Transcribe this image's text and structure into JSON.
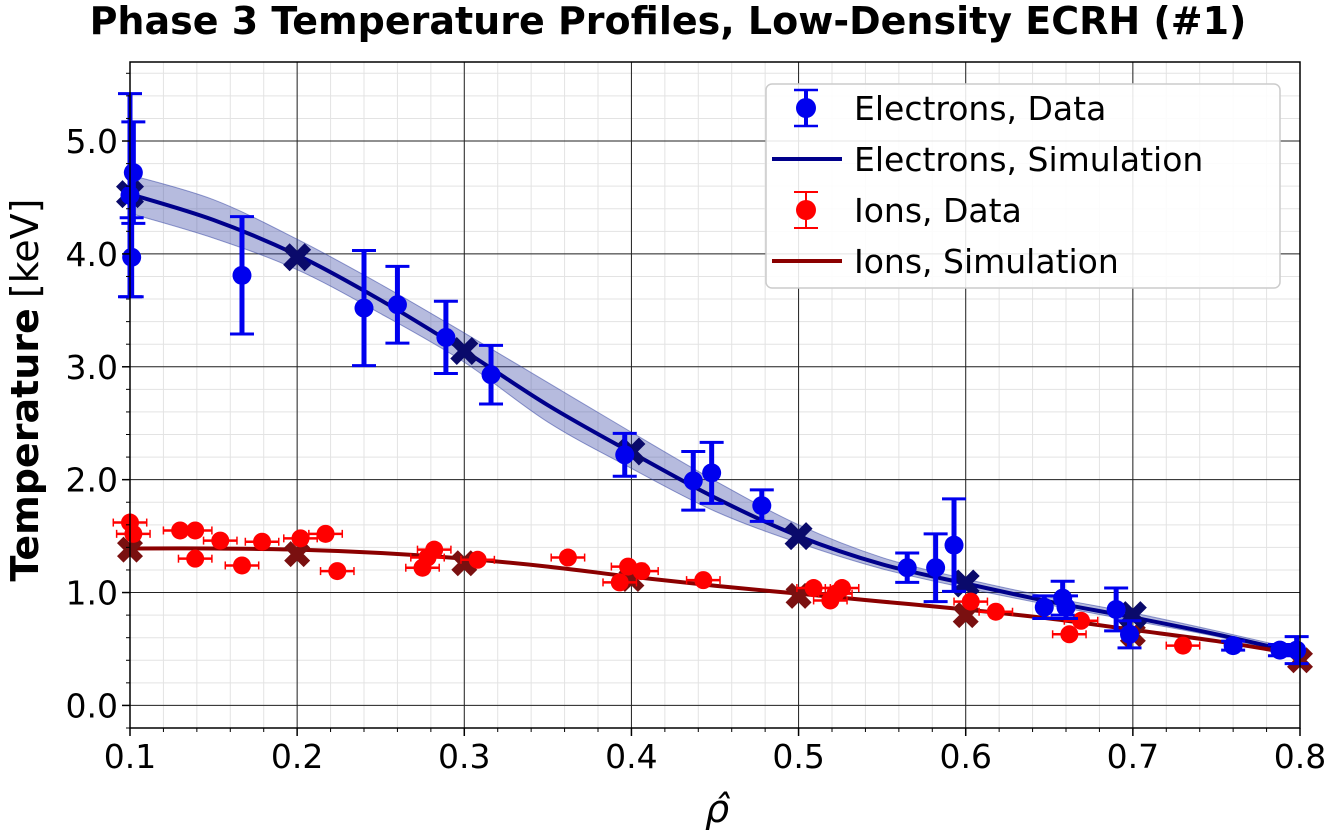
{
  "chart_data": {
    "type": "scatter",
    "title": "Phase 3 Temperature Profiles, Low-Density ECRH (#1)",
    "xlabel": "ρ̂",
    "ylabel": "Temperature",
    "ylabel_unit": "[keV]",
    "xlim": [
      0.1,
      0.8
    ],
    "ylim": [
      -0.2,
      5.7
    ],
    "x_ticks": [
      "0.1",
      "0.2",
      "0.3",
      "0.4",
      "0.5",
      "0.6",
      "0.7",
      "0.8"
    ],
    "y_ticks": [
      "0.0",
      "1.0",
      "2.0",
      "3.0",
      "4.0",
      "5.0"
    ],
    "grid": true,
    "legend_position": "top-right",
    "legend": [
      {
        "label": "Electrons, Data",
        "kind": "errorbar",
        "color": "#0000ee"
      },
      {
        "label": "Electrons, Simulation",
        "kind": "line",
        "color": "#00008b"
      },
      {
        "label": "Ions, Data",
        "kind": "errorbar",
        "color": "#ff0000"
      },
      {
        "label": "Ions, Simulation",
        "kind": "line",
        "color": "#8b0000"
      }
    ],
    "series": [
      {
        "name": "Electrons, Data",
        "color": "#0000ee",
        "points": [
          {
            "x": 0.1,
            "y": 4.52,
            "yerr": 0.9
          },
          {
            "x": 0.102,
            "y": 4.72,
            "yerr": 0.45
          },
          {
            "x": 0.101,
            "y": 3.97,
            "yerr": 0.35
          },
          {
            "x": 0.167,
            "y": 3.81,
            "yerr": 0.52
          },
          {
            "x": 0.24,
            "y": 3.52,
            "yerr": 0.51
          },
          {
            "x": 0.26,
            "y": 3.55,
            "yerr": 0.34
          },
          {
            "x": 0.289,
            "y": 3.26,
            "yerr": 0.32
          },
          {
            "x": 0.316,
            "y": 2.93,
            "yerr": 0.26
          },
          {
            "x": 0.396,
            "y": 2.22,
            "yerr": 0.19
          },
          {
            "x": 0.437,
            "y": 1.99,
            "yerr": 0.26
          },
          {
            "x": 0.448,
            "y": 2.06,
            "yerr": 0.27
          },
          {
            "x": 0.478,
            "y": 1.77,
            "yerr": 0.14
          },
          {
            "x": 0.565,
            "y": 1.22,
            "yerr": 0.13
          },
          {
            "x": 0.582,
            "y": 1.22,
            "yerr": 0.3
          },
          {
            "x": 0.593,
            "y": 1.42,
            "yerr": 0.41
          },
          {
            "x": 0.647,
            "y": 0.87,
            "yerr": 0.1
          },
          {
            "x": 0.658,
            "y": 0.95,
            "yerr": 0.15
          },
          {
            "x": 0.66,
            "y": 0.87,
            "yerr": 0.1
          },
          {
            "x": 0.69,
            "y": 0.85,
            "yerr": 0.19
          },
          {
            "x": 0.698,
            "y": 0.63,
            "yerr": 0.12
          },
          {
            "x": 0.76,
            "y": 0.53,
            "yerr": 0.04
          },
          {
            "x": 0.788,
            "y": 0.49,
            "yerr": 0.05
          },
          {
            "x": 0.798,
            "y": 0.49,
            "yerr": 0.12
          }
        ]
      },
      {
        "name": "Electrons, Simulation",
        "color": "#00008b",
        "band_color": "#2e3da0",
        "x": [
          0.1,
          0.15,
          0.2,
          0.25,
          0.3,
          0.35,
          0.4,
          0.45,
          0.5,
          0.55,
          0.6,
          0.65,
          0.7,
          0.75,
          0.8
        ],
        "y": [
          4.53,
          4.3,
          3.99,
          3.59,
          3.14,
          2.66,
          2.24,
          1.84,
          1.5,
          1.25,
          1.08,
          0.92,
          0.78,
          0.63,
          0.46
        ],
        "band_lower": [
          4.36,
          4.14,
          3.86,
          3.47,
          3.04,
          2.51,
          2.1,
          1.72,
          1.44,
          1.21,
          1.04,
          0.89,
          0.75,
          0.61,
          0.44
        ],
        "band_upper": [
          4.7,
          4.48,
          4.13,
          3.73,
          3.3,
          2.86,
          2.42,
          1.99,
          1.6,
          1.31,
          1.12,
          0.96,
          0.82,
          0.66,
          0.49
        ],
        "markers_x": [
          0.1,
          0.2,
          0.3,
          0.4,
          0.5,
          0.6,
          0.7
        ],
        "markers_y": [
          4.53,
          3.97,
          3.14,
          2.25,
          1.5,
          1.08,
          0.8
        ]
      },
      {
        "name": "Ions, Data",
        "color": "#ff0000",
        "points": [
          {
            "x": 0.1,
            "y": 1.62,
            "xerr": 0.01
          },
          {
            "x": 0.102,
            "y": 1.52,
            "xerr": 0.01
          },
          {
            "x": 0.13,
            "y": 1.55,
            "xerr": 0.01
          },
          {
            "x": 0.139,
            "y": 1.55,
            "xerr": 0.01
          },
          {
            "x": 0.139,
            "y": 1.3,
            "xerr": 0.01
          },
          {
            "x": 0.154,
            "y": 1.46,
            "xerr": 0.01
          },
          {
            "x": 0.167,
            "y": 1.24,
            "xerr": 0.01
          },
          {
            "x": 0.179,
            "y": 1.45,
            "xerr": 0.01
          },
          {
            "x": 0.202,
            "y": 1.48,
            "xerr": 0.01
          },
          {
            "x": 0.217,
            "y": 1.52,
            "xerr": 0.01
          },
          {
            "x": 0.224,
            "y": 1.19,
            "xerr": 0.01
          },
          {
            "x": 0.275,
            "y": 1.22,
            "xerr": 0.01
          },
          {
            "x": 0.278,
            "y": 1.31,
            "xerr": 0.01
          },
          {
            "x": 0.282,
            "y": 1.38,
            "xerr": 0.01
          },
          {
            "x": 0.308,
            "y": 1.29,
            "xerr": 0.01
          },
          {
            "x": 0.362,
            "y": 1.31,
            "xerr": 0.01
          },
          {
            "x": 0.393,
            "y": 1.09,
            "xerr": 0.01
          },
          {
            "x": 0.398,
            "y": 1.23,
            "xerr": 0.01
          },
          {
            "x": 0.406,
            "y": 1.19,
            "xerr": 0.01
          },
          {
            "x": 0.443,
            "y": 1.11,
            "xerr": 0.01
          },
          {
            "x": 0.509,
            "y": 1.04,
            "xerr": 0.01
          },
          {
            "x": 0.519,
            "y": 0.93,
            "xerr": 0.01
          },
          {
            "x": 0.522,
            "y": 0.99,
            "xerr": 0.01
          },
          {
            "x": 0.526,
            "y": 1.04,
            "xerr": 0.01
          },
          {
            "x": 0.603,
            "y": 0.92,
            "xerr": 0.01
          },
          {
            "x": 0.618,
            "y": 0.83,
            "xerr": 0.01
          },
          {
            "x": 0.662,
            "y": 0.63,
            "xerr": 0.01
          },
          {
            "x": 0.669,
            "y": 0.75,
            "xerr": 0.01
          },
          {
            "x": 0.73,
            "y": 0.53,
            "xerr": 0.01
          }
        ]
      },
      {
        "name": "Ions, Simulation",
        "color": "#8b0000",
        "x": [
          0.1,
          0.15,
          0.2,
          0.25,
          0.3,
          0.35,
          0.4,
          0.45,
          0.5,
          0.55,
          0.6,
          0.65,
          0.7,
          0.75,
          0.8
        ],
        "y": [
          1.39,
          1.39,
          1.38,
          1.35,
          1.3,
          1.23,
          1.14,
          1.06,
          0.99,
          0.92,
          0.85,
          0.77,
          0.67,
          0.57,
          0.45
        ],
        "markers_x": [
          0.1,
          0.2,
          0.3,
          0.4,
          0.5,
          0.6,
          0.7,
          0.8
        ],
        "markers_y": [
          1.38,
          1.34,
          1.26,
          1.12,
          0.97,
          0.8,
          0.63,
          0.4
        ]
      }
    ]
  }
}
